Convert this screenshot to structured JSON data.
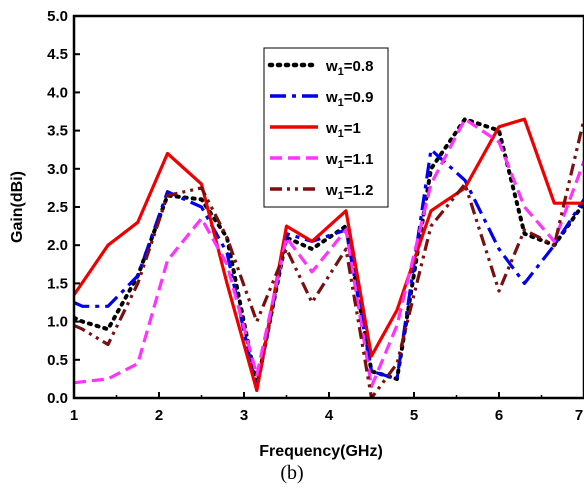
{
  "chart_data": {
    "type": "line",
    "xlabel": "Frequency(GHz)",
    "ylabel": "Gain(dBi)",
    "xlim": [
      1,
      7
    ],
    "ylim": [
      0,
      5
    ],
    "xticks": [
      1,
      2,
      3,
      4,
      5,
      6,
      7
    ],
    "xtick_labels": [
      "1",
      "2",
      "3",
      "4",
      "5",
      "6",
      "7"
    ],
    "yticks": [
      0,
      0.5,
      1,
      1.5,
      2,
      2.5,
      3,
      3.5,
      4,
      4.5,
      5
    ],
    "ytick_labels": [
      "0.0",
      "0.5",
      "1.0",
      "1.5",
      "2.0",
      "2.5",
      "3.0",
      "3.5",
      "4.0",
      "4.5",
      "5.0"
    ],
    "legend_position": "top-center",
    "series": [
      {
        "name": "w1=0.8",
        "label_base": "w",
        "label_sub": "1",
        "label_rest": "=0.8",
        "color": "#000000",
        "dash": "dot",
        "x": [
          1,
          1.1,
          1.4,
          1.75,
          2.1,
          2.5,
          2.8,
          3.15,
          3.5,
          3.8,
          4.2,
          4.5,
          4.8,
          5.2,
          5.6,
          6.0,
          6.3,
          6.65,
          7
        ],
        "y": [
          1.05,
          1.0,
          0.9,
          1.6,
          2.65,
          2.6,
          2.1,
          0.15,
          2.1,
          1.95,
          2.25,
          0.35,
          0.25,
          3.0,
          3.65,
          3.5,
          2.15,
          2.0,
          2.55
        ]
      },
      {
        "name": "w1=0.9",
        "label_base": "w",
        "label_sub": "1",
        "label_rest": "=0.9",
        "color": "#0000ee",
        "dash": "dashdot",
        "x": [
          1,
          1.1,
          1.4,
          1.75,
          2.1,
          2.5,
          2.8,
          3.15,
          3.5,
          3.8,
          4.2,
          4.5,
          4.8,
          5.2,
          5.6,
          6.0,
          6.3,
          6.65,
          7
        ],
        "y": [
          1.25,
          1.2,
          1.2,
          1.6,
          2.7,
          2.5,
          1.9,
          0.1,
          2.15,
          2.05,
          2.2,
          0.35,
          0.25,
          3.25,
          2.85,
          1.95,
          1.5,
          2.0,
          2.6
        ]
      },
      {
        "name": "w1=1",
        "label_base": "w",
        "label_sub": "1",
        "label_rest": "=1",
        "color": "#ee0000",
        "dash": "solid",
        "x": [
          1,
          1.4,
          1.75,
          2.1,
          2.5,
          2.8,
          3.15,
          3.5,
          3.8,
          4.2,
          4.5,
          4.8,
          5.2,
          5.6,
          6.0,
          6.3,
          6.65,
          7
        ],
        "y": [
          1.35,
          2.0,
          2.3,
          3.2,
          2.8,
          1.5,
          0.1,
          2.25,
          2.05,
          2.45,
          0.55,
          1.15,
          2.45,
          2.75,
          3.55,
          3.65,
          2.55,
          2.55
        ]
      },
      {
        "name": "w1=1.1",
        "label_base": "w",
        "label_sub": "1",
        "label_rest": "=1.1",
        "color": "#ff33ff",
        "dash": "dash",
        "x": [
          1,
          1.4,
          1.75,
          2.1,
          2.5,
          2.8,
          3.15,
          3.5,
          3.8,
          4.2,
          4.5,
          4.8,
          5.2,
          5.6,
          6.0,
          6.3,
          6.65,
          7
        ],
        "y": [
          0.2,
          0.25,
          0.45,
          1.8,
          2.35,
          1.75,
          0.3,
          2.1,
          1.65,
          2.2,
          0.15,
          0.95,
          2.8,
          3.65,
          3.35,
          2.5,
          2.05,
          3.1
        ]
      },
      {
        "name": "w1=1.2",
        "label_base": "w",
        "label_sub": "1",
        "label_rest": "=1.2",
        "color": "#7a0f10",
        "dash": "dashdotdot",
        "x": [
          1,
          1.1,
          1.4,
          1.75,
          2.1,
          2.5,
          2.8,
          3.15,
          3.5,
          3.8,
          4.2,
          4.5,
          4.8,
          5.2,
          5.6,
          6.0,
          6.3,
          6.65,
          7
        ],
        "y": [
          0.95,
          0.9,
          0.7,
          1.5,
          2.65,
          2.75,
          2.1,
          1.0,
          1.95,
          1.25,
          1.95,
          0.0,
          0.45,
          2.25,
          2.8,
          1.4,
          2.2,
          2.0,
          3.65
        ]
      }
    ]
  },
  "caption": "(b)"
}
